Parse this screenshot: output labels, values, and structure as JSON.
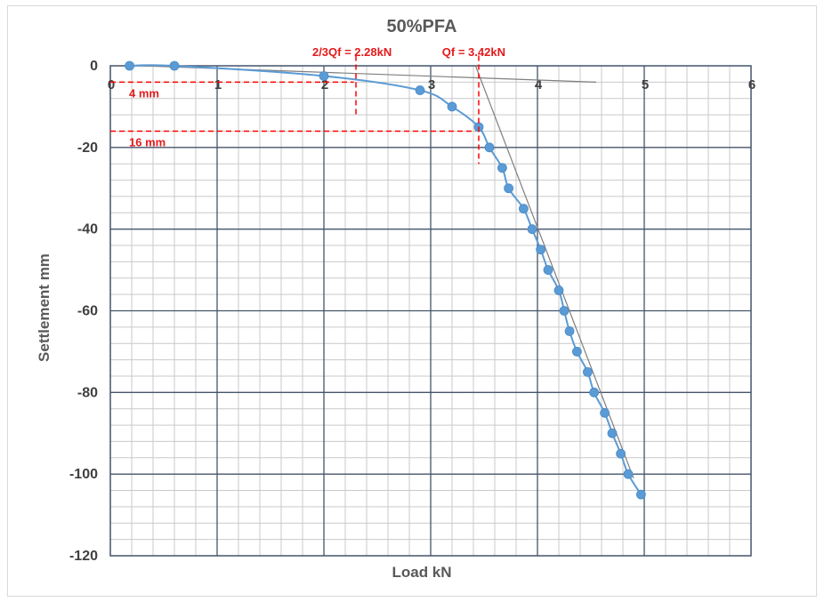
{
  "chart_data": {
    "type": "scatter",
    "title": "50%PFA",
    "xlabel": "Load kN",
    "ylabel": "Settlement mm",
    "xlim": [
      0,
      6
    ],
    "ylim": [
      -120,
      0
    ],
    "x_ticks": [
      "0",
      "1",
      "2",
      "3",
      "4",
      "5",
      "6"
    ],
    "y_ticks": [
      "0",
      "-20",
      "-40",
      "-60",
      "-80",
      "-100",
      "-120"
    ],
    "x_minor_step": 0.2,
    "y_minor_step": 4,
    "grid": true,
    "colors": {
      "series": "#5b9bd5",
      "guide": "#7f7f7f",
      "dashed": "#ff0000",
      "annotation": "#e31a1c",
      "major_grid": "#44546a",
      "minor_grid": "#c9c9c9"
    },
    "series": [
      {
        "x": [
          0.18,
          0.6,
          2.0,
          2.9,
          3.2,
          3.45,
          3.55,
          3.67,
          3.73,
          3.87,
          3.95,
          4.03,
          4.1,
          4.2,
          4.25,
          4.3,
          4.37,
          4.47,
          4.53,
          4.63,
          4.7,
          4.78,
          4.85,
          4.97
        ],
        "y": [
          0,
          0,
          -2.5,
          -6,
          -10,
          -15,
          -20,
          -25,
          -30,
          -35,
          -40,
          -45,
          -50,
          -55,
          -60,
          -65,
          -70,
          -75,
          -80,
          -85,
          -90,
          -95,
          -100,
          -105
        ]
      }
    ],
    "tangent_lines": [
      {
        "x": [
          0.3,
          4.55
        ],
        "y": [
          0,
          -4
        ]
      },
      {
        "x": [
          3.42,
          4.9
        ],
        "y": [
          0,
          -101
        ]
      }
    ],
    "annotations": [
      {
        "text": "2/3Qf = 2.28kN",
        "x": 2.3,
        "y_from": 2.5,
        "y_to": -12,
        "label_x": 2.28
      },
      {
        "text": "Qf = 3.42kN",
        "x": 3.45,
        "y_from": 2.5,
        "y_to": -24,
        "label_x": 3.42
      },
      {
        "text": "4 mm",
        "y": -4,
        "x_from": 0,
        "x_to": 2.28
      },
      {
        "text": "16 mm",
        "y": -16,
        "x_from": 0,
        "x_to": 3.42
      }
    ]
  }
}
